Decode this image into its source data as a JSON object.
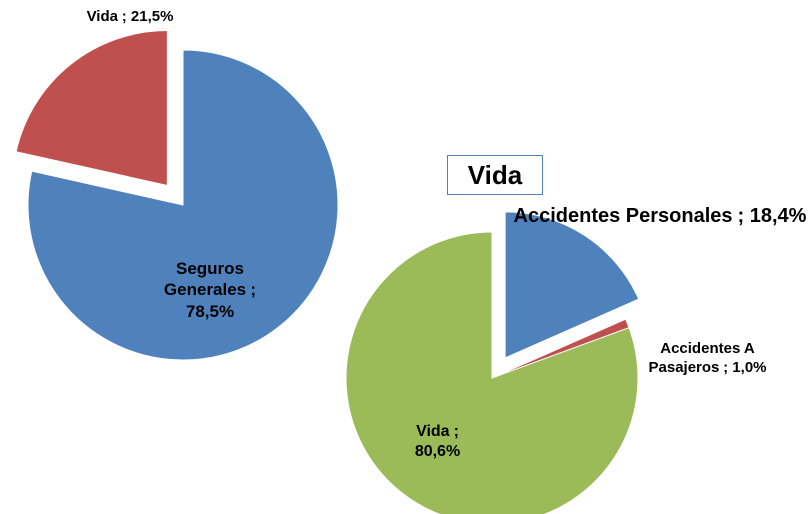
{
  "chart_data": [
    {
      "type": "pie",
      "categories": [
        "Seguros Generales",
        "Vida"
      ],
      "values": [
        78.5,
        21.5
      ],
      "value_labels": [
        "; 78,5%",
        "; 21,5%"
      ],
      "colors": [
        "#4f81bd",
        "#c0504d"
      ],
      "exploded": [
        false,
        true
      ]
    },
    {
      "type": "pie",
      "title": "Vida",
      "categories": [
        "Accidentes Personales",
        "Accidentes A Pasajeros",
        "Vida"
      ],
      "values": [
        18.4,
        1.0,
        80.6
      ],
      "value_labels": [
        "; 18,4%",
        "; 1,0%",
        "; 80,6%"
      ],
      "colors": [
        "#4f81bd",
        "#c0504d",
        "#9bbb59"
      ],
      "exploded": [
        true,
        false,
        false
      ]
    }
  ]
}
